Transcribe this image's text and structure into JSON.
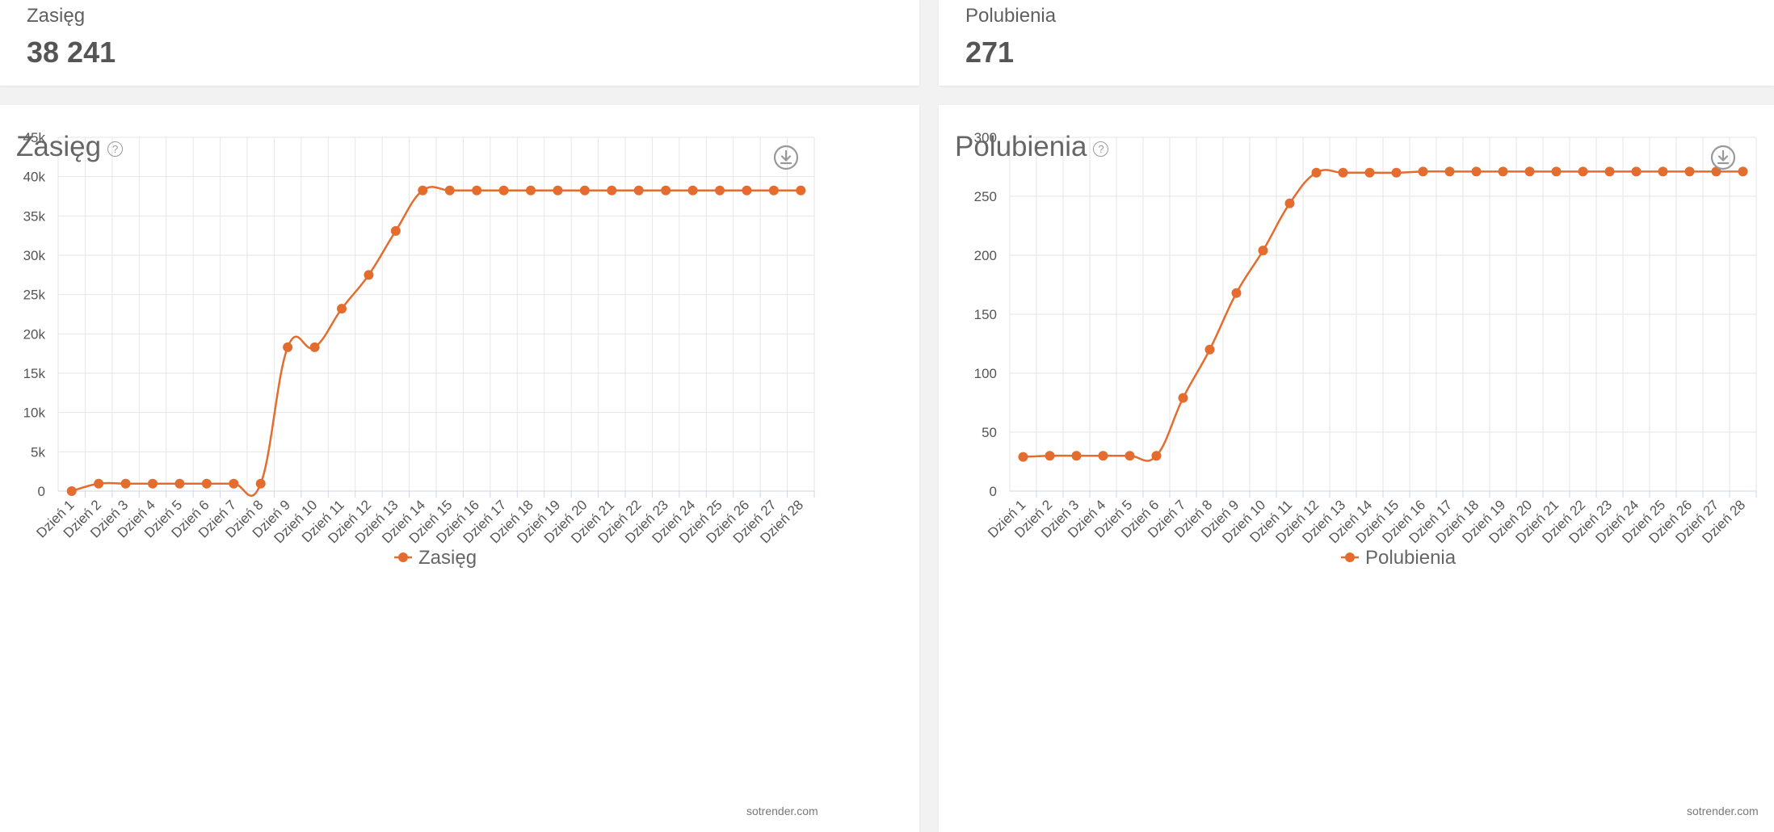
{
  "stats": [
    {
      "label": "Zasięg",
      "value": "38 241"
    },
    {
      "label": "Polubienia",
      "value": "271"
    }
  ],
  "credit": "sotrender.com",
  "help_symbol": "?",
  "colors": {
    "series": "#e46c2e",
    "grid": "#e6e6e6",
    "axis": "#ccd6eb"
  },
  "chart_data": [
    {
      "type": "line",
      "title": "Zasięg",
      "categories": [
        "Dzień 1",
        "Dzień 2",
        "Dzień 3",
        "Dzień 4",
        "Dzień 5",
        "Dzień 6",
        "Dzień 7",
        "Dzień 8",
        "Dzień 9",
        "Dzień 10",
        "Dzień 11",
        "Dzień 12",
        "Dzień 13",
        "Dzień 14",
        "Dzień 15",
        "Dzień 16",
        "Dzień 17",
        "Dzień 18",
        "Dzień 19",
        "Dzień 20",
        "Dzień 21",
        "Dzień 22",
        "Dzień 23",
        "Dzień 24",
        "Dzień 25",
        "Dzień 26",
        "Dzień 27",
        "Dzień 28"
      ],
      "series": [
        {
          "name": "Zasięg",
          "values": [
            0,
            950,
            950,
            950,
            950,
            950,
            950,
            950,
            18300,
            18300,
            23200,
            27500,
            33100,
            38241,
            38241,
            38241,
            38241,
            38241,
            38241,
            38241,
            38241,
            38241,
            38241,
            38241,
            38241,
            38241,
            38241,
            38241
          ]
        }
      ],
      "ylim": [
        0,
        45000
      ],
      "yticks": [
        0,
        5000,
        10000,
        15000,
        20000,
        25000,
        30000,
        35000,
        40000,
        45000
      ],
      "ytick_labels": [
        "0",
        "5k",
        "10k",
        "15k",
        "20k",
        "25k",
        "30k",
        "35k",
        "40k",
        "45k"
      ],
      "grid": true,
      "legend": "bottom-center"
    },
    {
      "type": "line",
      "title": "Polubienia",
      "categories": [
        "Dzień 1",
        "Dzień 2",
        "Dzień 3",
        "Dzień 4",
        "Dzień 5",
        "Dzień 6",
        "Dzień 7",
        "Dzień 8",
        "Dzień 9",
        "Dzień 10",
        "Dzień 11",
        "Dzień 12",
        "Dzień 13",
        "Dzień 14",
        "Dzień 15",
        "Dzień 16",
        "Dzień 17",
        "Dzień 18",
        "Dzień 19",
        "Dzień 20",
        "Dzień 21",
        "Dzień 22",
        "Dzień 23",
        "Dzień 24",
        "Dzień 25",
        "Dzień 26",
        "Dzień 27",
        "Dzień 28"
      ],
      "series": [
        {
          "name": "Polubienia",
          "values": [
            29,
            30,
            30,
            30,
            30,
            30,
            79,
            120,
            168,
            204,
            244,
            270,
            270,
            270,
            270,
            271,
            271,
            271,
            271,
            271,
            271,
            271,
            271,
            271,
            271,
            271,
            271,
            271
          ]
        }
      ],
      "ylim": [
        0,
        300
      ],
      "yticks": [
        0,
        50,
        100,
        150,
        200,
        250,
        300
      ],
      "ytick_labels": [
        "0",
        "50",
        "100",
        "150",
        "200",
        "250",
        "300"
      ],
      "grid": true,
      "legend": "bottom-center"
    }
  ]
}
